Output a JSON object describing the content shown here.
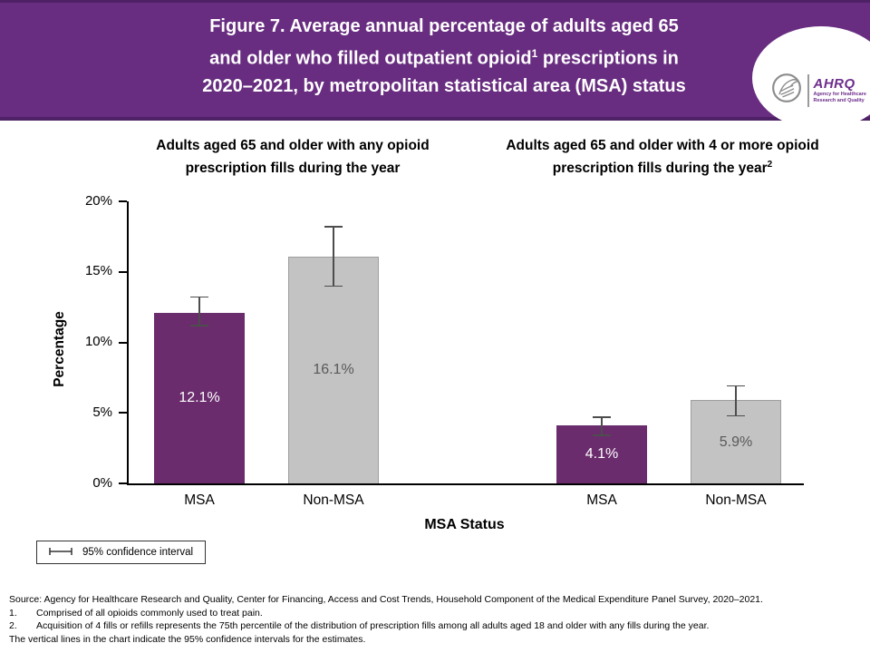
{
  "header": {
    "title_line1": "Figure 7. Average annual percentage of adults aged 65",
    "title_line2_pre": "and older who filled outpatient opioid",
    "title_line2_sup": "1",
    "title_line2_post": " prescriptions in",
    "title_line3": "2020–2021, by metropolitan statistical area (MSA) status",
    "background_color": "#682d80",
    "border_color": "#4e2166",
    "logo": {
      "abbr": "AHRQ",
      "tagline_line1": "Agency for Healthcare",
      "tagline_line2": "Research and Quality"
    }
  },
  "chart_data": {
    "type": "bar",
    "title": "Figure 7. Average annual percentage of adults aged 65 and older who filled outpatient opioid prescriptions in 2020–2021, by metropolitan statistical area (MSA) status",
    "xlabel": "MSA Status",
    "ylabel": "Percentage",
    "ylim": [
      0,
      20
    ],
    "yticks": [
      0,
      5,
      10,
      15,
      20
    ],
    "ytick_labels": [
      "0%",
      "5%",
      "10%",
      "15%",
      "20%"
    ],
    "grid": false,
    "legend": "95% confidence interval",
    "legend_position": "bottom-left",
    "error_bar_color": "#4d4d4d",
    "panels": [
      {
        "title": "Adults aged 65 and older with any opioid prescription fills during the year",
        "title_sup": "",
        "categories": [
          "MSA",
          "Non-MSA"
        ],
        "bars": [
          {
            "category": "MSA",
            "value": 12.1,
            "label": "12.1%",
            "ci_low": 11.2,
            "ci_high": 13.2,
            "color": "#6a2c6d",
            "border": "",
            "label_color": "#ffffff"
          },
          {
            "category": "Non-MSA",
            "value": 16.1,
            "label": "16.1%",
            "ci_low": 14.0,
            "ci_high": 18.2,
            "color": "#c3c3c3",
            "border": "#9e9e9e",
            "label_color": "#595959"
          }
        ]
      },
      {
        "title": "Adults aged 65 and older with 4 or more opioid prescription fills during the year",
        "title_sup": "2",
        "categories": [
          "MSA",
          "Non-MSA"
        ],
        "bars": [
          {
            "category": "MSA",
            "value": 4.1,
            "label": "4.1%",
            "ci_low": 3.4,
            "ci_high": 4.7,
            "color": "#6a2c6d",
            "border": "",
            "label_color": "#ffffff"
          },
          {
            "category": "Non-MSA",
            "value": 5.9,
            "label": "5.9%",
            "ci_low": 4.8,
            "ci_high": 6.9,
            "color": "#c3c3c3",
            "border": "#9e9e9e",
            "label_color": "#595959"
          }
        ]
      }
    ]
  },
  "footer": {
    "source": "Source: Agency for Healthcare Research and Quality, Center for Financing, Access and Cost Trends, Household Component of the Medical Expenditure Panel Survey, 2020–2021.",
    "note1_num": "1.",
    "note1": "Comprised of all opioids commonly used to treat pain.",
    "note2_num": "2.",
    "note2": "Acquisition of 4 fills or refills represents the 75th percentile of the distribution of prescription fills among all adults aged 18 and older with any fills during the year.",
    "note3": "The vertical lines in the chart indicate the 95% confidence intervals for the estimates."
  }
}
